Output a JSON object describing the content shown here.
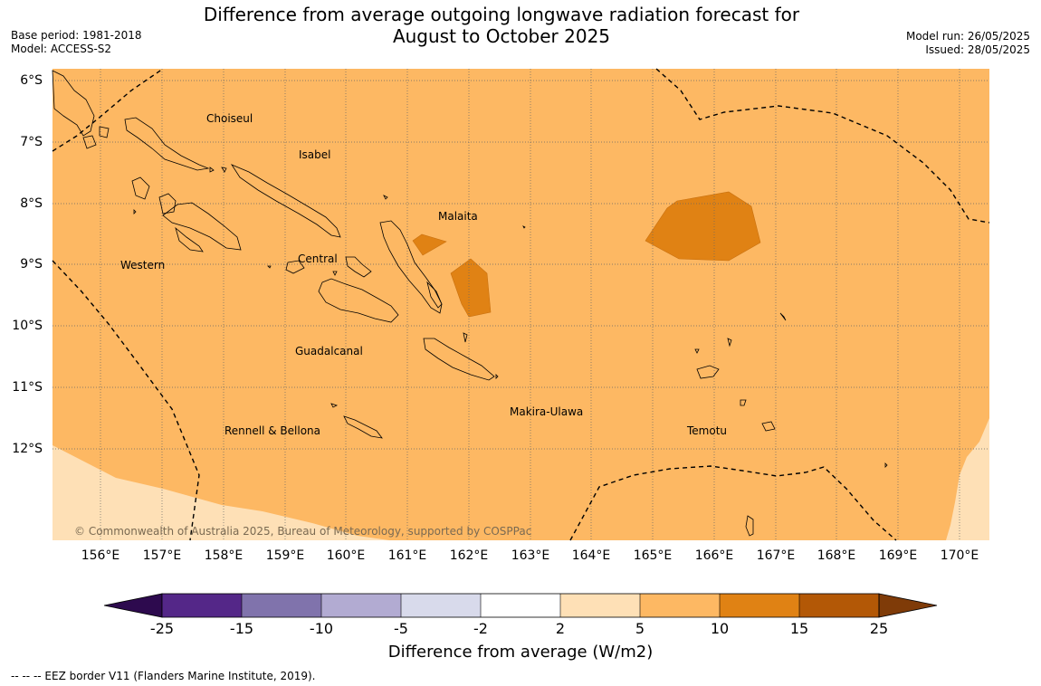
{
  "title": {
    "line1": "Difference from average outgoing longwave radiation forecast for",
    "line2": "August to October 2025"
  },
  "meta_left": {
    "base_period": "Base period: 1981-2018",
    "model": "Model: ACCESS-S2"
  },
  "meta_right": {
    "model_run": "Model run: 26/05/2025",
    "issued": "Issued: 28/05/2025"
  },
  "latitude_labels": [
    "6°S",
    "7°S",
    "8°S",
    "9°S",
    "10°S",
    "11°S",
    "12°S"
  ],
  "longitude_labels": [
    "156°E",
    "157°E",
    "158°E",
    "159°E",
    "160°E",
    "161°E",
    "162°E",
    "163°E",
    "164°E",
    "165°E",
    "166°E",
    "167°E",
    "168°E",
    "169°E",
    "170°E"
  ],
  "regions": {
    "choiseul": "Choiseul",
    "isabel": "Isabel",
    "malaita": "Malaita",
    "western": "Western",
    "central": "Central",
    "guadalcanal": "Guadalcanal",
    "makira": "Makira-Ulawa",
    "rennell": "Rennell & Bellona",
    "temotu": "Temotu"
  },
  "copyright": "© Commonwealth of Australia 2025, Bureau of Meteorology, supported by COSPPac",
  "colorbar": {
    "title": "Difference from average (W/m2)",
    "ticks": [
      "-25",
      "-15",
      "-10",
      "-5",
      "-2",
      "2",
      "5",
      "10",
      "15",
      "25"
    ],
    "colors": {
      "below_-25": "#2d0a4e",
      "-25_-15": "#542788",
      "-15_-10": "#8073ac",
      "-10_-5": "#b2abd2",
      "-5_-2": "#d8daeb",
      "-2_2": "#ffffff",
      "2_5": "#fee0b6",
      "5_10": "#fdb863",
      "10_15": "#e08214",
      "15_25": "#b35806",
      "above_25": "#7f3b08"
    }
  },
  "eez_note": "--  --  -- EEZ border V11 (Flanders Marine Institute, 2019)."
}
